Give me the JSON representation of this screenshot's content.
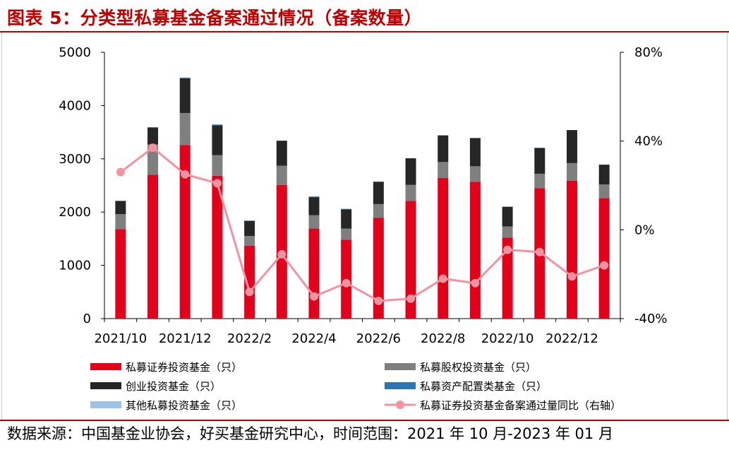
{
  "title": "图表 5：分类型私募基金备案通过情况（备案数量）",
  "source": "数据来源：中国基金业协会，好买基金研究中心，时间范围：2021 年 10 月-2023 年 01 月",
  "chart_data": {
    "type": "bar",
    "stacked": true,
    "categories": [
      "2021/10",
      "2021/11",
      "2021/12",
      "2022/1",
      "2022/2",
      "2022/3",
      "2022/4",
      "2022/5",
      "2022/6",
      "2022/7",
      "2022/8",
      "2022/9",
      "2022/10",
      "2022/11",
      "2022/12",
      "2023/1"
    ],
    "x_tick_labels": [
      "2021/10",
      "2021/12",
      "2022/2",
      "2022/4",
      "2022/6",
      "2022/8",
      "2022/10",
      "2022/12"
    ],
    "left_axis": {
      "min": 0,
      "max": 5000,
      "ticks": [
        "0",
        "1000",
        "2000",
        "3000",
        "4000",
        "5000"
      ]
    },
    "right_axis": {
      "min": -40,
      "max": 80,
      "ticks": [
        "-40%",
        "0%",
        "40%",
        "80%"
      ]
    },
    "series": [
      {
        "name": "私募证券投资基金（只）",
        "color": "#e3001b",
        "values": [
          1680,
          2700,
          3260,
          2680,
          1370,
          2510,
          1690,
          1480,
          1890,
          2210,
          2640,
          2570,
          1520,
          2450,
          2590,
          2260
        ]
      },
      {
        "name": "私募股权投资基金（只）",
        "color": "#7f7f7f",
        "values": [
          280,
          570,
          600,
          390,
          180,
          360,
          250,
          210,
          260,
          300,
          300,
          290,
          210,
          270,
          330,
          260
        ]
      },
      {
        "name": "创业投资基金（只）",
        "color": "#262626",
        "values": [
          250,
          320,
          650,
          560,
          280,
          470,
          340,
          360,
          420,
          500,
          500,
          530,
          370,
          480,
          620,
          370
        ]
      },
      {
        "name": "私募资产配置类基金（只）",
        "color": "#2e75b6",
        "values": [
          0,
          0,
          10,
          10,
          10,
          0,
          10,
          10,
          0,
          0,
          0,
          0,
          0,
          10,
          0,
          0
        ]
      },
      {
        "name": "其他私募投资基金（只）",
        "color": "#9dc3e6",
        "values": [
          0,
          0,
          10,
          10,
          0,
          0,
          10,
          0,
          0,
          0,
          0,
          0,
          0,
          0,
          0,
          0
        ]
      },
      {
        "name": "私募证券投资基金备案通过量同比（右轴）",
        "color": "#f4939f",
        "axis": "right",
        "type": "line",
        "values": [
          26,
          37,
          25,
          21,
          -28,
          -11,
          -30,
          -24,
          -32,
          -31,
          -22,
          -24,
          -9,
          -10,
          -21,
          -16
        ]
      }
    ],
    "legend": [
      "私募证券投资基金（只）",
      "私募股权投资基金（只）",
      "创业投资基金（只）",
      "私募资产配置类基金（只）",
      "其他私募投资基金（只）",
      "私募证券投资基金备案通过量同比（右轴）"
    ]
  }
}
